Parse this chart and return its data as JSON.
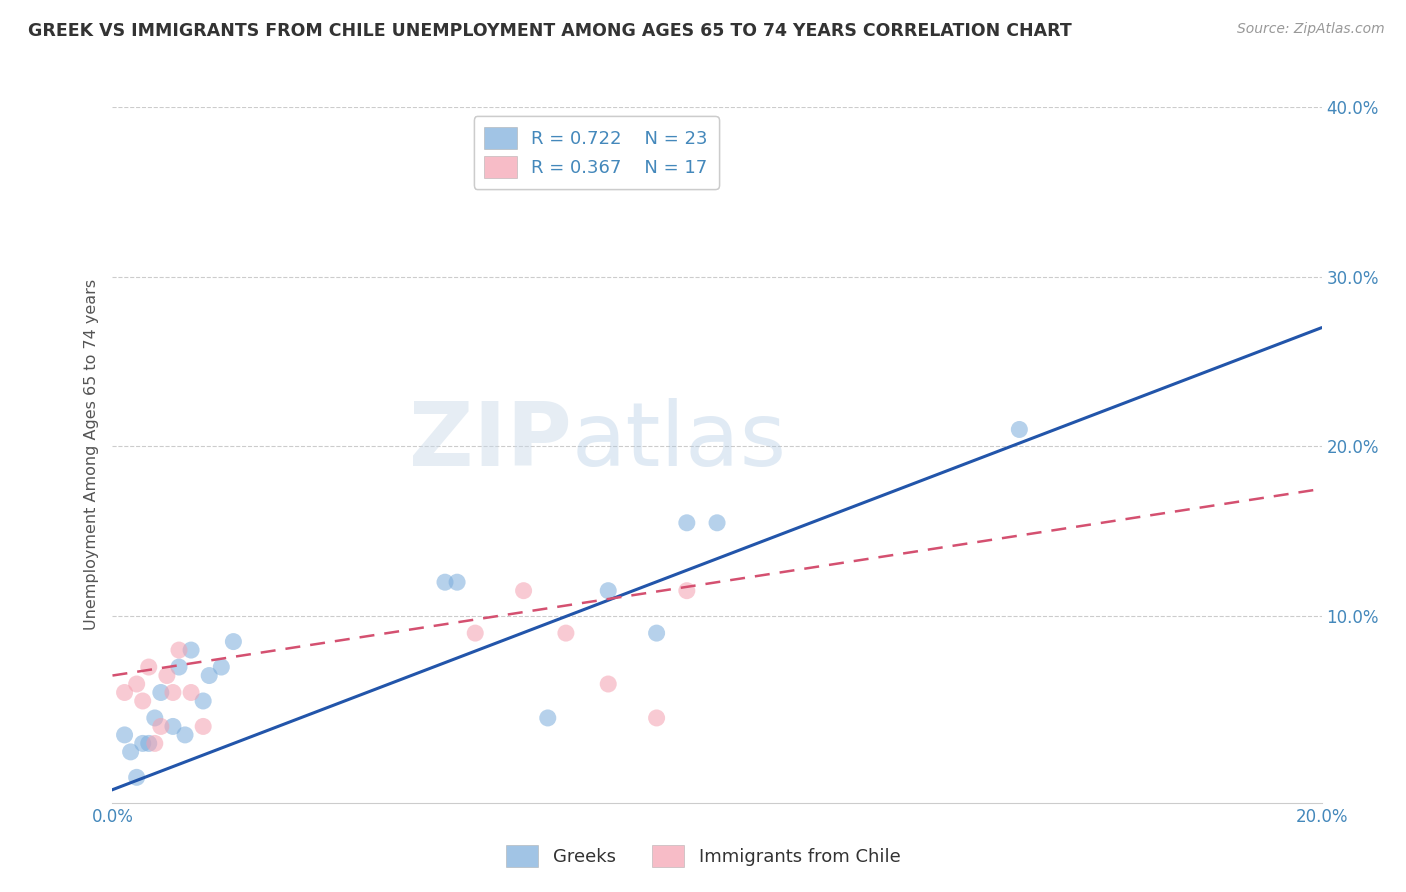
{
  "title": "GREEK VS IMMIGRANTS FROM CHILE UNEMPLOYMENT AMONG AGES 65 TO 74 YEARS CORRELATION CHART",
  "source": "Source: ZipAtlas.com",
  "ylabel": "Unemployment Among Ages 65 to 74 years",
  "legend_label_blue": "Greeks",
  "legend_label_pink": "Immigrants from Chile",
  "legend_R_blue": "R = 0.722",
  "legend_N_blue": "N = 23",
  "legend_R_pink": "R = 0.367",
  "legend_N_pink": "N = 17",
  "xlim": [
    0.0,
    0.2
  ],
  "ylim": [
    -0.01,
    0.4
  ],
  "xticks": [
    0.0,
    0.05,
    0.1,
    0.15,
    0.2
  ],
  "yticks": [
    0.0,
    0.1,
    0.2,
    0.3,
    0.4
  ],
  "blue_scatter_x": [
    0.002,
    0.003,
    0.004,
    0.005,
    0.006,
    0.007,
    0.008,
    0.01,
    0.011,
    0.012,
    0.013,
    0.015,
    0.016,
    0.018,
    0.02,
    0.055,
    0.057,
    0.072,
    0.082,
    0.09,
    0.095,
    0.1,
    0.15
  ],
  "blue_scatter_y": [
    0.03,
    0.02,
    0.005,
    0.025,
    0.025,
    0.04,
    0.055,
    0.035,
    0.07,
    0.03,
    0.08,
    0.05,
    0.065,
    0.07,
    0.085,
    0.12,
    0.12,
    0.04,
    0.115,
    0.09,
    0.155,
    0.155,
    0.21
  ],
  "pink_scatter_x": [
    0.002,
    0.004,
    0.005,
    0.006,
    0.007,
    0.008,
    0.009,
    0.01,
    0.011,
    0.013,
    0.015,
    0.06,
    0.068,
    0.075,
    0.082,
    0.09,
    0.095
  ],
  "pink_scatter_y": [
    0.055,
    0.06,
    0.05,
    0.07,
    0.025,
    0.035,
    0.065,
    0.055,
    0.08,
    0.055,
    0.035,
    0.09,
    0.115,
    0.09,
    0.06,
    0.04,
    0.115
  ],
  "blue_line_x": [
    -0.002,
    0.2
  ],
  "blue_line_y": [
    -0.005,
    0.27
  ],
  "pink_line_x": [
    0.0,
    0.2
  ],
  "pink_line_y": [
    0.065,
    0.175
  ],
  "watermark_zip": "ZIP",
  "watermark_atlas": "atlas",
  "background_color": "#ffffff",
  "blue_color": "#7aacdb",
  "pink_color": "#f4a0b0",
  "blue_line_color": "#2255aa",
  "pink_line_color": "#d45070",
  "grid_color": "#cccccc",
  "title_color": "#333333",
  "axis_tick_color": "#4488bb"
}
